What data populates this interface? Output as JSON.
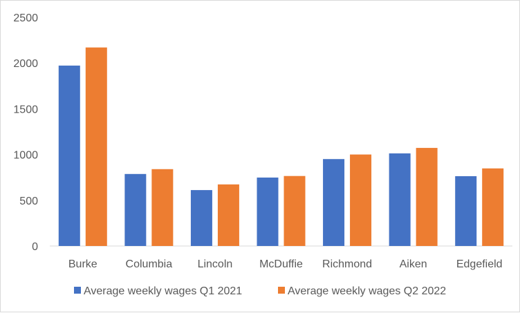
{
  "chart_data": {
    "type": "bar",
    "categories": [
      "Burke",
      "Columbia",
      "Lincoln",
      "McDuffie",
      "Richmond",
      "Aiken",
      "Edgefield"
    ],
    "series": [
      {
        "name": "Average weekly wages Q1 2021",
        "color": "#4472C4",
        "values": [
          1972,
          787,
          611,
          748,
          950,
          1012,
          763
        ]
      },
      {
        "name": "Average weekly wages Q2 2022",
        "color": "#ED7D31",
        "values": [
          2170,
          840,
          673,
          765,
          1000,
          1072,
          848
        ]
      }
    ],
    "title": "",
    "xlabel": "",
    "ylabel": "",
    "ylim": [
      0,
      2500
    ],
    "yticks": [
      "0",
      "500",
      "1000",
      "1500",
      "2000",
      "2500"
    ],
    "grid": false,
    "legend_position": "bottom"
  }
}
